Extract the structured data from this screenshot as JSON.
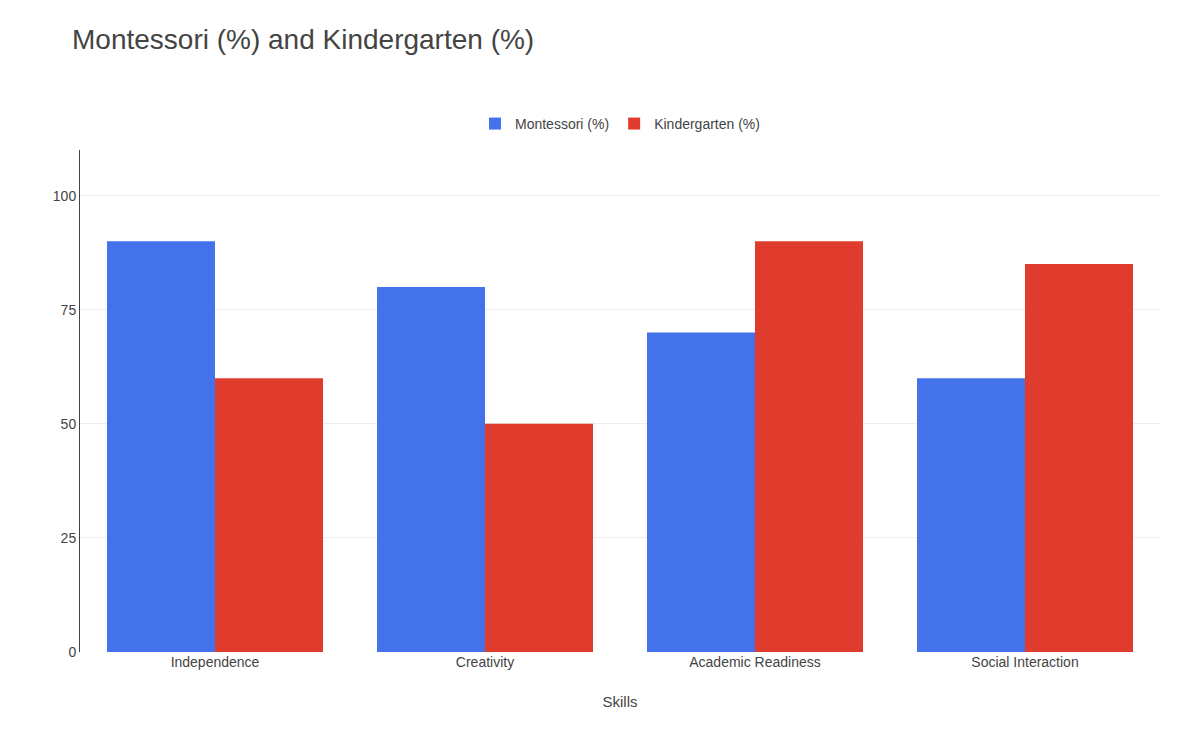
{
  "chart_data": {
    "type": "bar",
    "title": "Montessori (%) and Kindergarten (%)",
    "xlabel": "Skills",
    "categories": [
      "Independence",
      "Creativity",
      "Academic Readiness",
      "Social Interaction"
    ],
    "series": [
      {
        "name": "Montessori (%)",
        "color": "#4472EA",
        "values": [
          90,
          80,
          70,
          60
        ]
      },
      {
        "name": "Kindergarten (%)",
        "color": "#E03C2E",
        "values": [
          60,
          50,
          90,
          85
        ]
      }
    ],
    "ylim": [
      0,
      110
    ],
    "yticks": [
      0,
      25,
      50,
      75,
      100
    ],
    "grid": true,
    "legend": "top"
  }
}
